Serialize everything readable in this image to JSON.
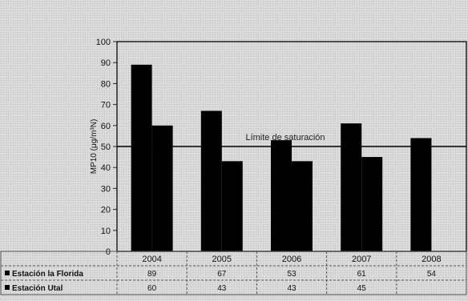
{
  "chart_data": {
    "type": "bar",
    "categories": [
      "2004",
      "2005",
      "2006",
      "2007",
      "2008"
    ],
    "series": [
      {
        "name": "Estación la Florida",
        "values": [
          89,
          67,
          53,
          61,
          54
        ],
        "labels": [
          "89",
          "67",
          "53",
          "61",
          "54"
        ],
        "color": "#000000"
      },
      {
        "name": "Estación Utal",
        "values": [
          60,
          43,
          43,
          45,
          null
        ],
        "labels": [
          "60",
          "43",
          "43",
          "45",
          ""
        ],
        "color": "#000000"
      }
    ],
    "ylabel": "MP10 (μg/m³N)",
    "ylim": [
      0,
      100
    ],
    "yticks": [
      0,
      10,
      20,
      30,
      40,
      50,
      60,
      70,
      80,
      90,
      100
    ],
    "reference_line": {
      "value": 50,
      "label": "Límite de saturación"
    },
    "data_table": true,
    "grid": false
  }
}
